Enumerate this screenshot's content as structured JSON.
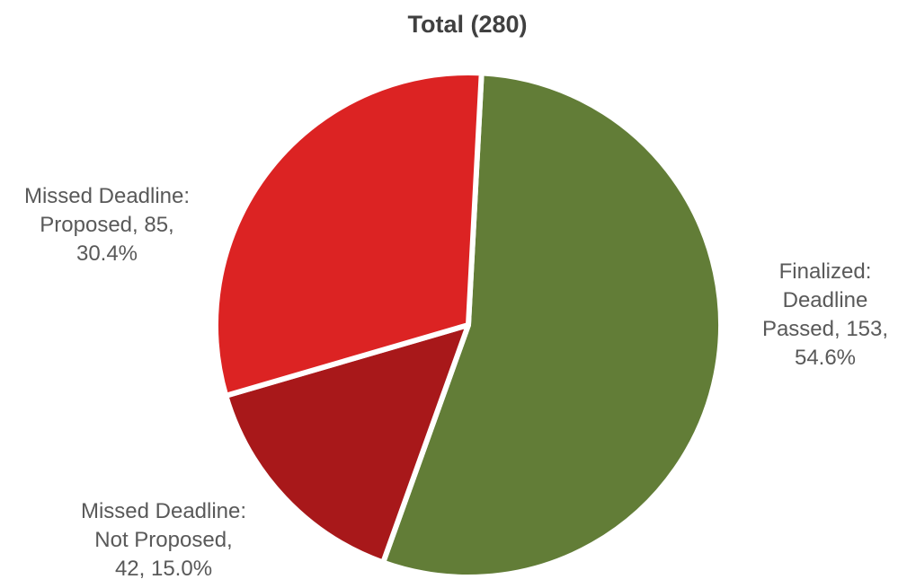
{
  "chart_data": {
    "type": "pie",
    "title": "Total (280)",
    "series": [
      {
        "values": [
          153,
          42,
          85
        ],
        "categories": [
          "Finalized: Deadline Passed",
          "Missed Deadline: Not Proposed",
          "Missed Deadline: Proposed"
        ]
      }
    ],
    "categories": [
      "Finalized: Deadline Passed",
      "Missed Deadline: Not Proposed",
      "Missed Deadline: Proposed"
    ],
    "values": [
      153,
      42,
      85
    ],
    "percentages": [
      "54.6%",
      "15.0%",
      "30.4%"
    ],
    "data_labels": [
      [
        "Finalized:",
        "Deadline",
        "Passed, 153,",
        "54.6%"
      ],
      [
        "Missed Deadline:",
        "Not Proposed,",
        "42, 15.0%"
      ],
      [
        "Missed Deadline:",
        "Proposed, 85,",
        "30.4%"
      ]
    ],
    "colors": [
      "#627d37",
      "#a8181a",
      "#dc2323"
    ],
    "title_color": "#404040",
    "label_color": "#595959",
    "legend": "none",
    "start_angle_deg": 3,
    "direction": "clockwise"
  }
}
